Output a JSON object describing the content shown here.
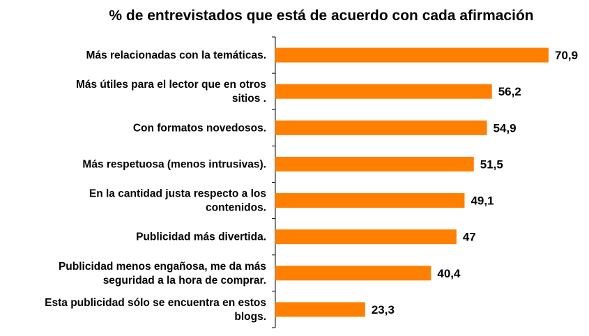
{
  "chart_data": {
    "type": "bar",
    "orientation": "horizontal",
    "title": "% de entrevistados que está de acuerdo con cada afirmación",
    "categories": [
      [
        "Más relacionadas con la temáticas."
      ],
      [
        "Más útiles para el  lector que en otros",
        "sitios ."
      ],
      [
        "Con formatos novedosos."
      ],
      [
        "Más respetuosa (menos intrusivas)."
      ],
      [
        "En la cantidad justa respecto a los",
        "contenidos."
      ],
      [
        "Publicidad más divertida."
      ],
      [
        "Publicidad menos engañosa, me da más",
        "seguridad a la hora de comprar."
      ],
      [
        "Esta publicidad sólo se encuentra en estos",
        "blogs."
      ]
    ],
    "values": [
      70.9,
      56.2,
      54.9,
      51.5,
      49.1,
      47,
      40.4,
      23.3
    ],
    "value_labels": [
      "70,9",
      "56,2",
      "54,9",
      "51,5",
      "49,1",
      "47",
      "40,4",
      "23,3"
    ],
    "xlim": [
      0,
      70.9
    ],
    "bar_color": "#ff7f00",
    "grid": false,
    "legend": "none"
  }
}
